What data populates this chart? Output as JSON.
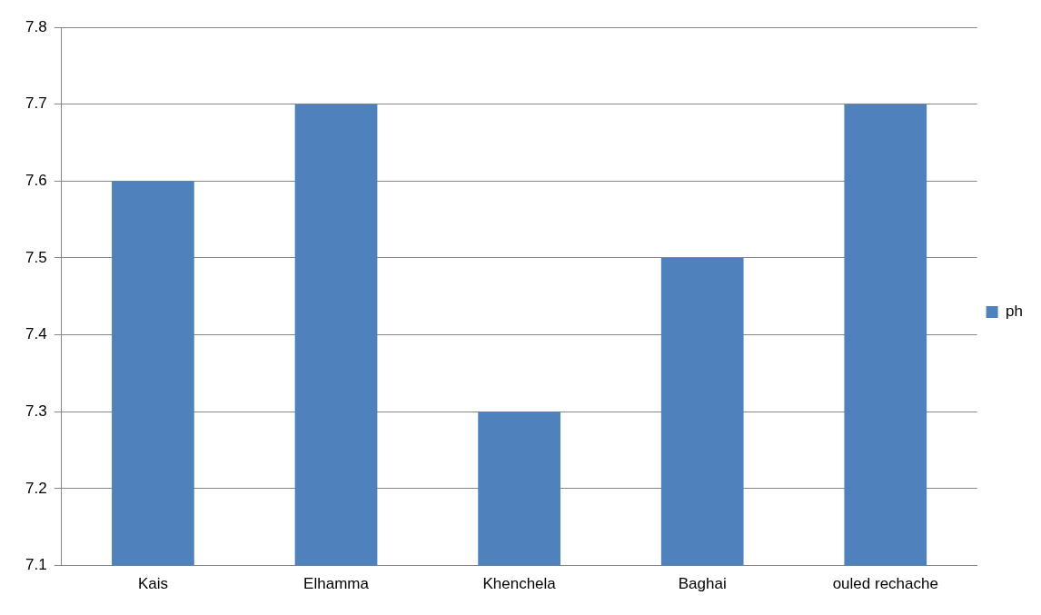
{
  "chart_data": {
    "type": "bar",
    "categories": [
      "Kais",
      "Elhamma",
      "Khenchela",
      "Baghai",
      "ouled rechache"
    ],
    "series": [
      {
        "name": "ph",
        "color": "#4f81bd",
        "values": [
          7.6,
          7.7,
          7.3,
          7.5,
          7.7
        ]
      }
    ],
    "ylim": [
      7.1,
      7.8
    ],
    "yticks": [
      7.1,
      7.2,
      7.3,
      7.4,
      7.5,
      7.6,
      7.7,
      7.8
    ],
    "grid": "y",
    "legend": "right"
  }
}
